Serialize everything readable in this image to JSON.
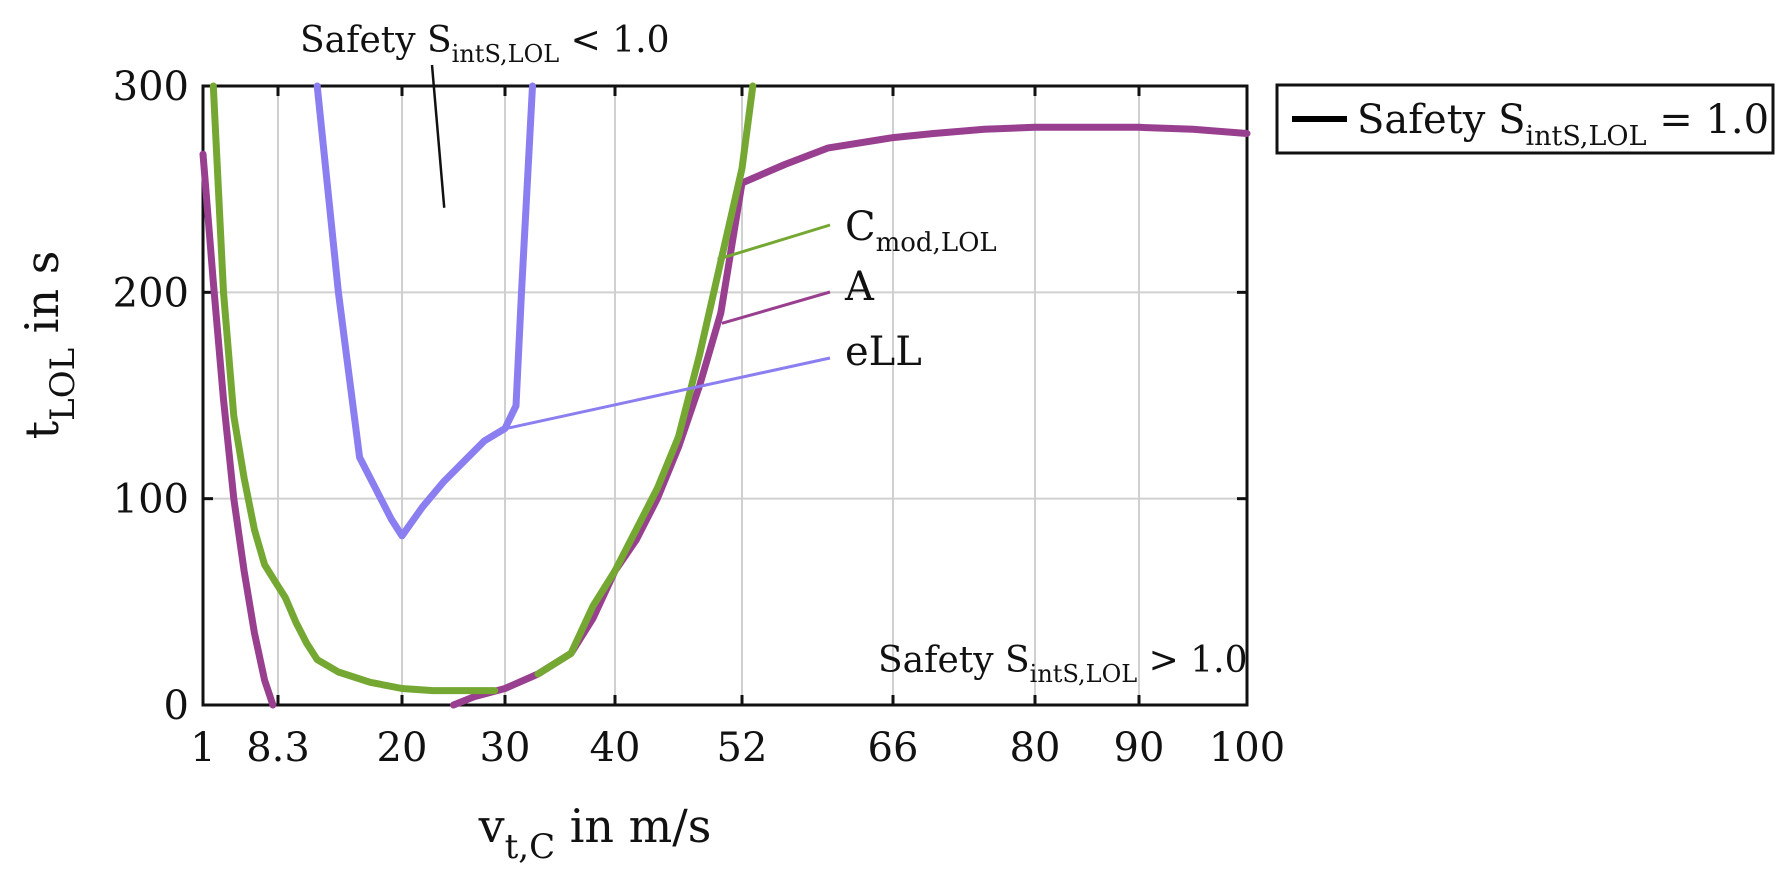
{
  "chart_data": {
    "type": "line",
    "title": "",
    "xlabel": {
      "base": "v",
      "sub": "t,C",
      "rest": " in m/s"
    },
    "ylabel": {
      "base": "t",
      "sub": "LOL",
      "rest": " in s"
    },
    "xlim": [
      1,
      100
    ],
    "ylim": [
      0,
      300
    ],
    "x_ticks": [
      1,
      8.3,
      20,
      30,
      40,
      52,
      66,
      80,
      90,
      100
    ],
    "x_tick_labels": [
      "1",
      "8.3",
      "20",
      "30",
      "40",
      "52",
      "66",
      "80",
      "90",
      "100"
    ],
    "y_ticks": [
      0,
      100,
      200,
      300
    ],
    "y_tick_labels": [
      "0",
      "100",
      "200",
      "300"
    ],
    "grid": true,
    "legend": {
      "position": "outside-top-right",
      "entries": [
        {
          "prefix": "Safety S",
          "sub": "intS,LOL",
          "suffix": " = 1.0",
          "color": "#000000"
        }
      ]
    },
    "annotations": {
      "region_upper": {
        "prefix": "Safety S",
        "sub": "intS,LOL",
        "suffix": " < 1.0",
        "pointer_target": [
          24.1,
          241
        ]
      },
      "region_lower": {
        "prefix": "Safety S",
        "sub": "intS,LOL",
        "suffix": " > 1.0"
      }
    },
    "series": [
      {
        "name": "A",
        "label": "A",
        "label_sub": "",
        "label_anchor": [
          50.1,
          185
        ],
        "color": "#993f8f",
        "segments": [
          [
            [
              1,
              267
            ],
            [
              2,
              205
            ],
            [
              3,
              148
            ],
            [
              4,
              100
            ],
            [
              5,
              65
            ],
            [
              6,
              35
            ],
            [
              7,
              12
            ],
            [
              7.8,
              0
            ]
          ],
          [
            [
              25,
              0
            ],
            [
              27,
              4
            ],
            [
              30,
              8
            ],
            [
              33,
              15
            ],
            [
              36,
              25
            ],
            [
              38,
              42
            ],
            [
              40,
              65
            ],
            [
              42,
              80
            ],
            [
              44,
              100
            ],
            [
              46,
              125
            ],
            [
              48,
              155
            ],
            [
              50,
              190
            ],
            [
              52,
              253
            ],
            [
              56,
              262
            ],
            [
              60,
              270
            ],
            [
              66,
              275
            ],
            [
              70,
              277
            ],
            [
              75,
              279
            ],
            [
              80,
              280
            ],
            [
              85,
              280
            ],
            [
              90,
              280
            ],
            [
              95,
              279
            ],
            [
              100,
              277
            ]
          ]
        ]
      },
      {
        "name": "C_mod,LOL",
        "label": "C",
        "label_sub": "mod,LOL",
        "label_anchor": [
          49.7,
          216
        ],
        "color": "#75a832",
        "segments": [
          [
            [
              2,
              300
            ],
            [
              2.5,
              250
            ],
            [
              3,
              200
            ],
            [
              4,
              140
            ],
            [
              5,
              110
            ],
            [
              6,
              85
            ],
            [
              7,
              68
            ],
            [
              8,
              60
            ],
            [
              9,
              52
            ],
            [
              10,
              40
            ],
            [
              11,
              30
            ],
            [
              12,
              22
            ],
            [
              14,
              16
            ],
            [
              17,
              11
            ],
            [
              20,
              8
            ],
            [
              23,
              7
            ],
            [
              26,
              7
            ],
            [
              29,
              7
            ]
          ],
          [
            [
              33,
              15
            ],
            [
              36,
              25
            ],
            [
              38,
              48
            ],
            [
              40,
              65
            ],
            [
              42,
              85
            ],
            [
              44,
              105
            ],
            [
              46,
              130
            ],
            [
              48,
              170
            ],
            [
              50,
              215
            ],
            [
              52,
              260
            ],
            [
              53,
              300
            ]
          ]
        ]
      },
      {
        "name": "eLL",
        "label": "eLL",
        "label_sub": "",
        "label_anchor": [
          30.1,
          134
        ],
        "color": "#8a7ef0",
        "segments": [
          [
            [
              12,
              300
            ],
            [
              13,
              250
            ],
            [
              14,
              200
            ],
            [
              15,
              160
            ],
            [
              16,
              120
            ],
            [
              17,
              110
            ],
            [
              18,
              100
            ],
            [
              19,
              90
            ],
            [
              20,
              82
            ],
            [
              22,
              96
            ],
            [
              24,
              108
            ],
            [
              26,
              118
            ],
            [
              28,
              128
            ],
            [
              30,
              134
            ],
            [
              31,
              145
            ],
            [
              31.5,
              200
            ],
            [
              32,
              250
            ],
            [
              32.5,
              300
            ]
          ]
        ]
      }
    ]
  }
}
